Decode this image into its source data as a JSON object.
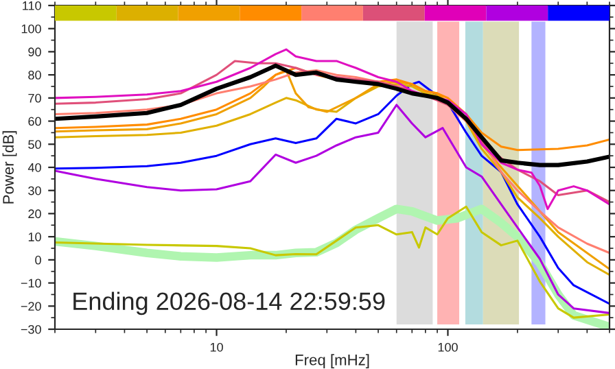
{
  "chart_data": {
    "type": "line",
    "xlabel": "Freq [mHz]",
    "ylabel": "Power [dB]",
    "log": "x",
    "xlim": [
      2,
      500
    ],
    "xticks": [
      10,
      100
    ],
    "ylim": [
      -30,
      110
    ],
    "yticks": [
      -30,
      -20,
      -10,
      0,
      10,
      20,
      30,
      40,
      50,
      60,
      70,
      80,
      90,
      100,
      110
    ],
    "grid": false,
    "marker": "none",
    "line_style": "solid",
    "annotations": [
      "Ending 2026-08-14 22:59:59"
    ],
    "bands": [
      {
        "axis": "x",
        "from": 60,
        "to": 86,
        "color": "#dcdcdc"
      },
      {
        "axis": "x",
        "from": 90,
        "to": 112,
        "color": "#ffb3b3"
      },
      {
        "axis": "x",
        "from": 119,
        "to": 142,
        "color": "#b3dcdf"
      },
      {
        "axis": "x",
        "from": 142,
        "to": 203,
        "color": "#dcdcb8"
      },
      {
        "axis": "x",
        "from": 230,
        "to": 264,
        "color": "#b3b3ff"
      }
    ],
    "series": [
      {
        "color": "#b0f5b0",
        "x": [
          2,
          3,
          5,
          7,
          10,
          14,
          18,
          22,
          27,
          33,
          40,
          50,
          60,
          70,
          90,
          110,
          140,
          170,
          200,
          250,
          300,
          350,
          500
        ],
        "values": [
          8,
          6,
          3,
          1.5,
          1,
          2,
          2,
          3,
          3.3,
          7.3,
          13,
          18,
          22,
          21,
          17,
          18,
          22,
          16,
          10,
          -1.6,
          -15,
          -24,
          -29
        ]
      },
      {
        "color": "#c8c800",
        "x": [
          2,
          5,
          10,
          14,
          18,
          22,
          27,
          33,
          40,
          50,
          60,
          70,
          75,
          80,
          90,
          100,
          120,
          140,
          170,
          200,
          250,
          300,
          350,
          500
        ],
        "values": [
          7.5,
          6.5,
          6,
          5,
          2,
          2.5,
          2.4,
          8.3,
          14,
          15,
          11,
          12,
          5.3,
          14,
          11,
          18,
          23,
          12,
          6.3,
          8.3,
          -9.4,
          -21,
          -25,
          -23.6
        ]
      },
      {
        "color": "#b000e0",
        "x": [
          2,
          3,
          5,
          7,
          10,
          14,
          18,
          22,
          27,
          33,
          40,
          50,
          60,
          70,
          80,
          95,
          120,
          140,
          170,
          200,
          250,
          300,
          350,
          500
        ],
        "values": [
          38.5,
          35,
          31.5,
          30,
          30.5,
          34,
          45.5,
          42,
          45,
          49.5,
          53,
          55,
          67,
          59,
          53,
          57,
          40,
          36,
          24,
          14,
          0.4,
          -15,
          -21,
          -23
        ]
      },
      {
        "color": "#0000ff",
        "x": [
          2,
          3,
          5,
          7,
          10,
          14,
          18,
          22,
          27,
          33,
          40,
          50,
          60,
          70,
          75,
          90,
          100,
          120,
          140,
          170,
          200,
          250,
          300,
          350,
          500
        ],
        "values": [
          39.5,
          39.8,
          40.5,
          42,
          45,
          50,
          52.5,
          50.5,
          52.5,
          61,
          59,
          63,
          71,
          76,
          77,
          71,
          68,
          55,
          45,
          38,
          24,
          10,
          -3.5,
          -11,
          -19
        ]
      },
      {
        "color": "#e0b000",
        "x": [
          2,
          3,
          5,
          7,
          10,
          14,
          18,
          20,
          22,
          27,
          33,
          40,
          50,
          60,
          70,
          80,
          90,
          100,
          120,
          140,
          170,
          200,
          250,
          300,
          400,
          500
        ],
        "values": [
          53,
          53.5,
          54,
          55,
          58,
          63,
          68,
          70,
          69,
          65,
          64,
          70,
          75,
          76,
          75,
          72,
          71,
          68,
          60,
          48,
          38,
          27,
          18,
          10,
          -1,
          -6.5
        ]
      },
      {
        "color": "#f0a000",
        "x": [
          2,
          3,
          5,
          7,
          10,
          14,
          16,
          18,
          20,
          22,
          25,
          30,
          40,
          50,
          60,
          70,
          80,
          90,
          100,
          120,
          140,
          170,
          200,
          300,
          500
        ],
        "values": [
          55.5,
          56,
          56.5,
          59,
          63,
          70,
          75,
          80,
          82,
          72,
          66,
          64,
          70,
          76,
          77,
          76,
          73,
          72,
          68,
          60,
          50,
          40,
          32,
          12,
          -4
        ]
      },
      {
        "color": "#ff8c00",
        "x": [
          2,
          3,
          5,
          7,
          10,
          14,
          18,
          22,
          27,
          33,
          40,
          50,
          60,
          70,
          80,
          90,
          100,
          120,
          140,
          170,
          200,
          300,
          400,
          500
        ],
        "values": [
          57,
          57.5,
          58.5,
          61,
          65,
          72,
          80,
          83,
          80,
          78,
          78,
          77,
          78,
          76,
          73,
          72,
          70,
          63,
          55,
          49,
          47.5,
          48,
          49.5,
          52
        ]
      },
      {
        "color": "#ff7f70",
        "x": [
          2,
          3,
          5,
          7,
          10,
          14,
          18,
          22,
          27,
          33,
          40,
          50,
          60,
          70,
          80,
          90,
          100,
          120,
          140,
          170,
          200,
          250,
          300,
          400,
          500
        ],
        "values": [
          63,
          63.5,
          65,
          67,
          72,
          75,
          78,
          81,
          82,
          80,
          79,
          77,
          75,
          73,
          71,
          70,
          67,
          60,
          52,
          38,
          30,
          21,
          14,
          7,
          3
        ]
      },
      {
        "color": "#e0507a",
        "x": [
          2,
          3,
          5,
          7,
          10,
          12,
          15,
          18,
          22,
          27,
          33,
          40,
          50,
          60,
          70,
          80,
          90,
          100,
          120,
          140,
          170,
          200,
          250,
          300,
          400,
          500
        ],
        "values": [
          67.5,
          68,
          69.5,
          72,
          80,
          86,
          85,
          85,
          83,
          80,
          79,
          78,
          77,
          75,
          73,
          71,
          69,
          67,
          61,
          51,
          44,
          39,
          34,
          28,
          30,
          25
        ]
      },
      {
        "color": "#e010c0",
        "x": [
          2,
          3,
          5,
          7,
          10,
          14,
          18,
          20,
          22,
          27,
          33,
          40,
          50,
          60,
          70,
          80,
          90,
          100,
          120,
          140,
          170,
          200,
          230,
          250,
          270,
          300,
          350,
          400,
          500
        ],
        "values": [
          70,
          70.5,
          71.5,
          73,
          77,
          83,
          89,
          91,
          88,
          86,
          86,
          83,
          79,
          77,
          73,
          71,
          70,
          69,
          63,
          50,
          42,
          39,
          37.7,
          32,
          22,
          30,
          31.8,
          30,
          24
        ]
      },
      {
        "color": "#000000",
        "x": [
          2,
          3,
          5,
          7,
          10,
          14,
          18,
          22,
          27,
          33,
          40,
          50,
          60,
          70,
          80,
          90,
          100,
          120,
          140,
          170,
          200,
          250,
          300,
          400,
          500
        ],
        "values": [
          61,
          62,
          63.5,
          67,
          74,
          79,
          84,
          80,
          81,
          78,
          77,
          76,
          74,
          72,
          71,
          70,
          68,
          61,
          53,
          43,
          42,
          41,
          41,
          42.5,
          44.6
        ]
      }
    ]
  }
}
